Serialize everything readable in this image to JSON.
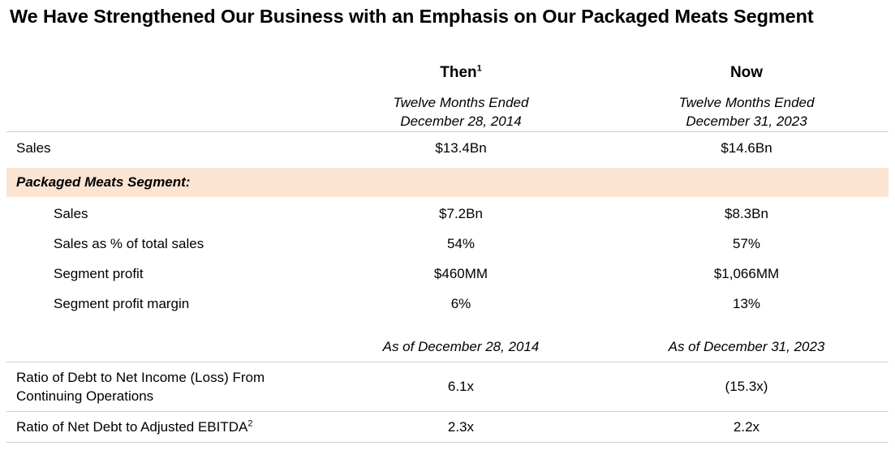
{
  "title": "We Have Strengthened Our Business with an Emphasis on Our Packaged Meats Segment",
  "columns": {
    "then": {
      "label": "Then",
      "footnote": "1",
      "period_line1": "Twelve Months Ended",
      "period_line2": "December 28, 2014",
      "as_of": "As of December 28, 2014"
    },
    "now": {
      "label": "Now",
      "period_line1": "Twelve Months Ended",
      "period_line2": "December 31, 2023",
      "as_of": "As of December 31, 2023"
    }
  },
  "rows": {
    "sales": {
      "label": "Sales",
      "then": "$13.4Bn",
      "now": "$14.6Bn"
    },
    "segment_header": "Packaged Meats Segment:",
    "seg_sales": {
      "label": "Sales",
      "then": "$7.2Bn",
      "now": "$8.3Bn"
    },
    "seg_pct": {
      "label": "Sales as % of total sales",
      "then": "54%",
      "now": "57%"
    },
    "seg_profit": {
      "label": "Segment profit",
      "then": "$460MM",
      "now": "$1,066MM"
    },
    "seg_margin": {
      "label": "Segment profit margin",
      "then": "6%",
      "now": "13%"
    },
    "debt_ratio": {
      "label_line1": "Ratio of Debt to Net Income (Loss) From",
      "label_line2": "Continuing Operations",
      "then": "6.1x",
      "now": "(15.3x)"
    },
    "net_debt": {
      "label": "Ratio of Net Debt to Adjusted EBITDA",
      "footnote": "2",
      "then": "2.3x",
      "now": "2.2x"
    }
  }
}
